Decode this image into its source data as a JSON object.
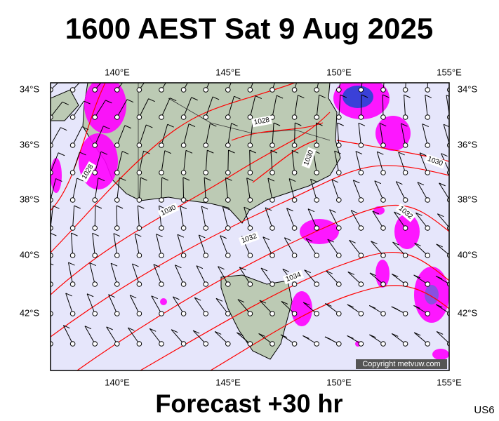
{
  "title": "1600 AEST Sat 9 Aug 2025",
  "subtitle": "Forecast +30 hr",
  "code": "US6",
  "copyright": "Copyright metvuw.com",
  "map": {
    "lon_labels": [
      "140°E",
      "145°E",
      "150°E",
      "155°E"
    ],
    "lat_labels": [
      "34°S",
      "36°S",
      "38°S",
      "40°S",
      "42°S"
    ],
    "isobar_labels": [
      "1028",
      "1030",
      "1028",
      "1030",
      "1032",
      "1034",
      "1030",
      "1032"
    ]
  }
}
